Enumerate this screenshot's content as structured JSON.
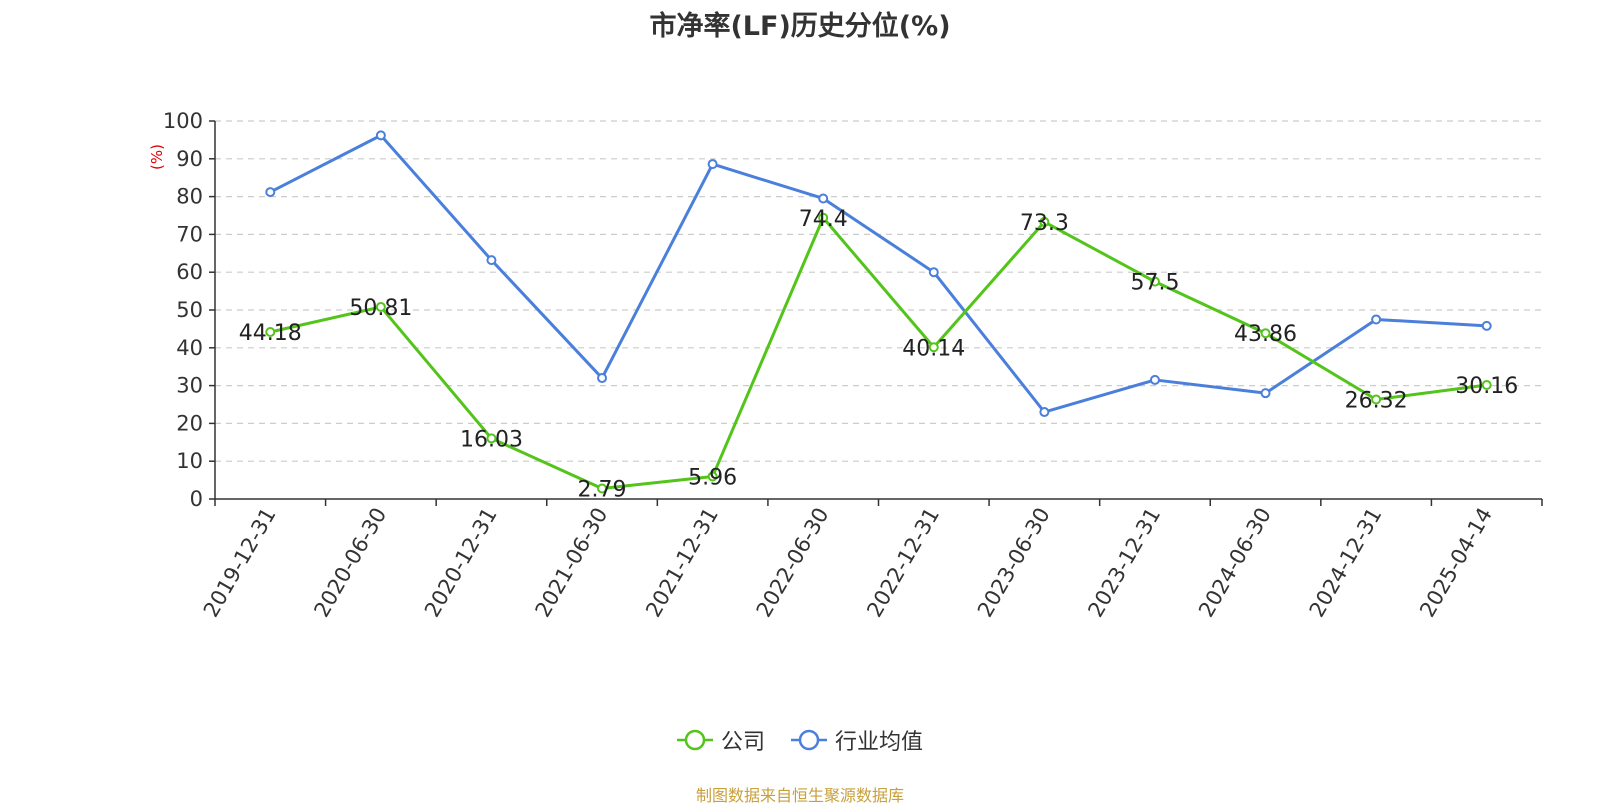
{
  "chart_data": {
    "type": "line",
    "title": "市净率(LF)历史分位(%)",
    "ylabel": "(%)",
    "ylim": [
      0,
      100
    ],
    "yticks": [
      0,
      10,
      20,
      30,
      40,
      50,
      60,
      70,
      80,
      90,
      100
    ],
    "categories": [
      "2019-12-31",
      "2020-06-30",
      "2020-12-31",
      "2021-06-30",
      "2021-12-31",
      "2022-06-30",
      "2022-12-31",
      "2023-06-30",
      "2023-12-31",
      "2024-06-30",
      "2024-12-31",
      "2025-04-14"
    ],
    "grid": true,
    "legend_position": "bottom",
    "series": [
      {
        "name": "公司",
        "color": "#52c41a",
        "values": [
          44.18,
          50.81,
          16.03,
          2.79,
          5.96,
          74.4,
          40.14,
          73.3,
          57.5,
          43.86,
          26.32,
          30.16
        ],
        "labels": [
          "44.18",
          "50.81",
          "16.03",
          "2.79",
          "5.96",
          "74.4",
          "40.14",
          "73.3",
          "57.5",
          "43.86",
          "26.32",
          "30.16"
        ]
      },
      {
        "name": "行业均值",
        "color": "#4a7fdc",
        "values": [
          81.2,
          96.2,
          63.2,
          32.0,
          88.6,
          79.5,
          60.0,
          23.0,
          31.5,
          28.0,
          47.5,
          45.8
        ]
      }
    ]
  },
  "source_note": "制图数据来自恒生聚源数据库"
}
